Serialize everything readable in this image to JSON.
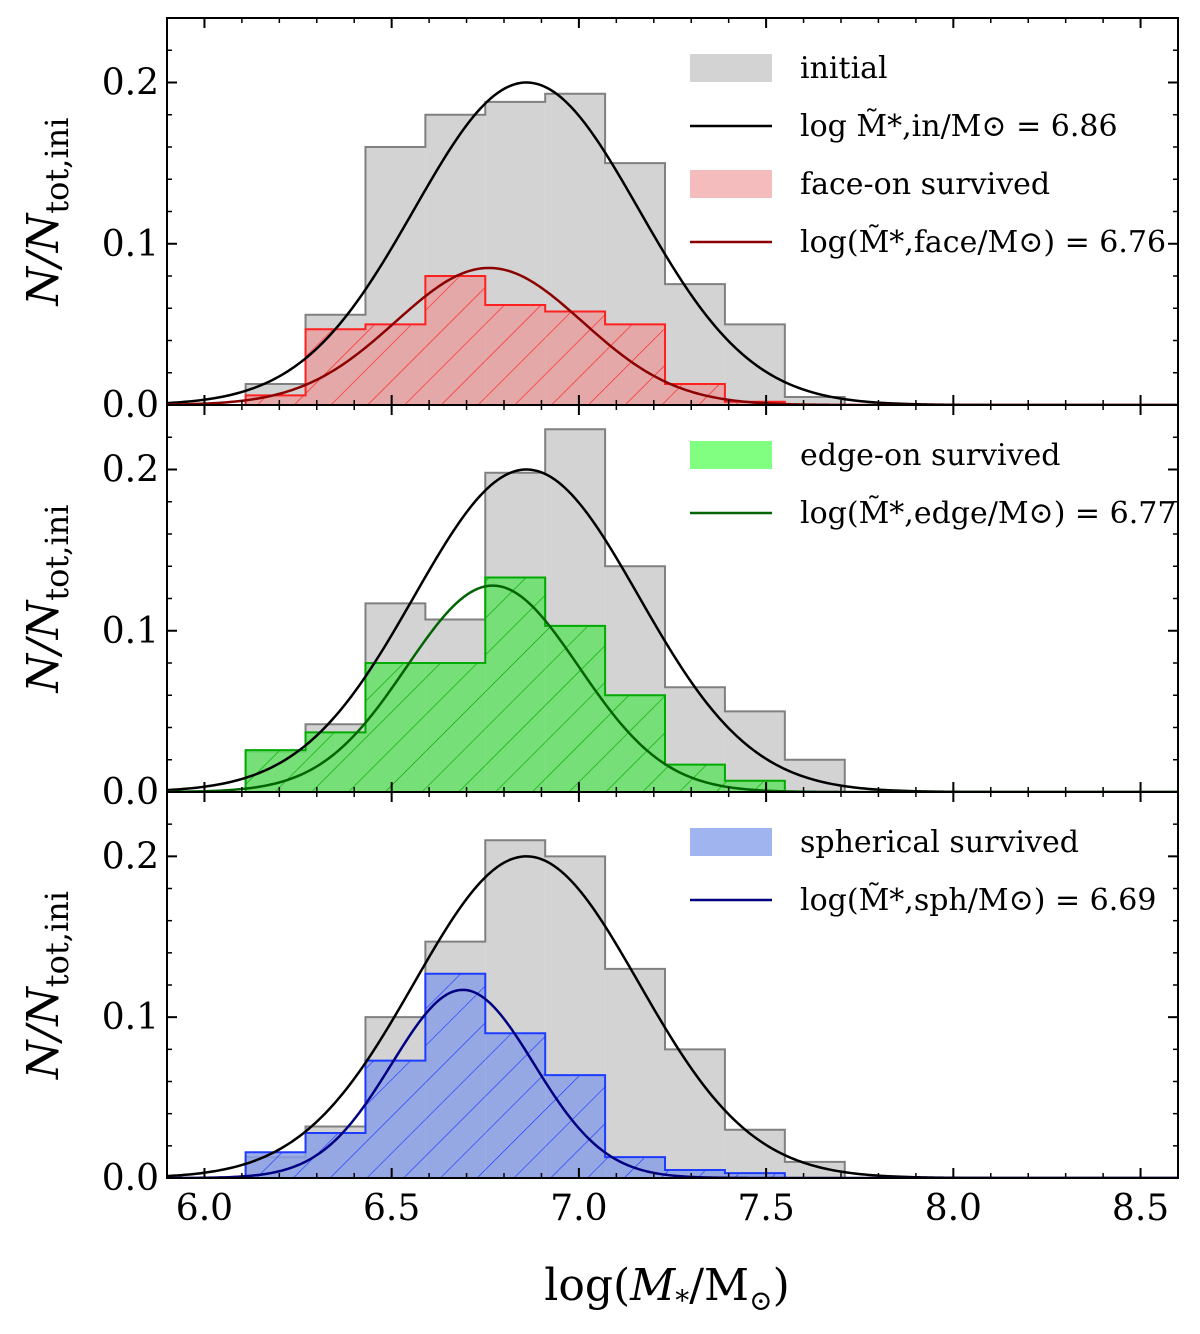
{
  "chart_data": {
    "type": "bar",
    "xlabel": "log(M*/M⊙)",
    "ylabel": "N/Ntot,ini",
    "xlim": [
      5.9,
      8.6
    ],
    "ylim": [
      0.0,
      0.24
    ],
    "xticks": [
      {
        "value": 6.0,
        "label": "6.0"
      },
      {
        "value": 6.5,
        "label": "6.5"
      },
      {
        "value": 7.0,
        "label": "7.0"
      },
      {
        "value": 7.5,
        "label": "7.5"
      },
      {
        "value": 8.0,
        "label": "8.0"
      },
      {
        "value": 8.5,
        "label": "8.5"
      }
    ],
    "yticks": [
      {
        "value": 0.0,
        "label": "0.0"
      },
      {
        "value": 0.1,
        "label": "0.1"
      },
      {
        "value": 0.2,
        "label": "0.2"
      }
    ],
    "bin_edges": [
      6.11,
      6.27,
      6.43,
      6.59,
      6.75,
      6.91,
      7.07,
      7.23,
      7.39,
      7.55,
      7.71
    ],
    "colors": {
      "initial_fill": "#d3d3d3",
      "initial_edge": "#808080"
    },
    "panels": [
      {
        "id": "face",
        "initial_values": [
          0.013,
          0.056,
          0.16,
          0.18,
          0.188,
          0.193,
          0.15,
          0.075,
          0.05,
          0.005
        ],
        "survived_values": [
          0.006,
          0.047,
          0.05,
          0.08,
          0.062,
          0.058,
          0.05,
          0.013,
          0.002,
          0.0
        ],
        "initial_fit": {
          "mu": 6.86,
          "sigma": 0.3,
          "amp": 0.2
        },
        "survived_fit": {
          "mu": 6.76,
          "sigma": 0.25,
          "amp": 0.085
        },
        "legend": [
          {
            "kind": "patch",
            "label": "initial",
            "color": "#d3d3d3"
          },
          {
            "kind": "line",
            "label": "log M̃*,in/M⊙ = 6.86",
            "color": "#000000"
          },
          {
            "kind": "patch",
            "label": "face-on survived",
            "color": "#f4bcbc"
          },
          {
            "kind": "line",
            "label": "log(M̃*,face/M⊙) = 6.76",
            "color": "#8b0000"
          }
        ],
        "survived_fill": "#e8a0a0",
        "survived_edge": "#ff2020",
        "fit_color": "#8b0000"
      },
      {
        "id": "edge",
        "initial_values": [
          0.025,
          0.042,
          0.117,
          0.107,
          0.198,
          0.225,
          0.14,
          0.065,
          0.05,
          0.02
        ],
        "survived_values": [
          0.026,
          0.037,
          0.08,
          0.08,
          0.133,
          0.103,
          0.06,
          0.017,
          0.007,
          0.0
        ],
        "initial_fit": {
          "mu": 6.86,
          "sigma": 0.3,
          "amp": 0.2
        },
        "survived_fit": {
          "mu": 6.77,
          "sigma": 0.23,
          "amp": 0.128
        },
        "legend": [
          {
            "kind": "patch",
            "label": "edge-on survived",
            "color": "#80ff80"
          },
          {
            "kind": "line",
            "label": "log(M̃*,edge/M⊙) = 6.77",
            "color": "#006400"
          }
        ],
        "survived_fill": "#66e066",
        "survived_edge": "#00aa00",
        "fit_color": "#006400"
      },
      {
        "id": "sph",
        "initial_values": [
          0.013,
          0.032,
          0.1,
          0.147,
          0.21,
          0.2,
          0.13,
          0.08,
          0.03,
          0.01
        ],
        "survived_values": [
          0.016,
          0.028,
          0.073,
          0.127,
          0.09,
          0.064,
          0.013,
          0.005,
          0.003,
          0.0
        ],
        "initial_fit": {
          "mu": 6.86,
          "sigma": 0.3,
          "amp": 0.2
        },
        "survived_fit": {
          "mu": 6.69,
          "sigma": 0.19,
          "amp": 0.117
        },
        "legend": [
          {
            "kind": "patch",
            "label": "spherical survived",
            "color": "#a0b4f0"
          },
          {
            "kind": "line",
            "label": "log(M̃*,sph/M⊙) = 6.69",
            "color": "#000080"
          }
        ],
        "survived_fill": "#8aa0e6",
        "survived_edge": "#1e3cff",
        "fit_color": "#000080"
      }
    ]
  }
}
